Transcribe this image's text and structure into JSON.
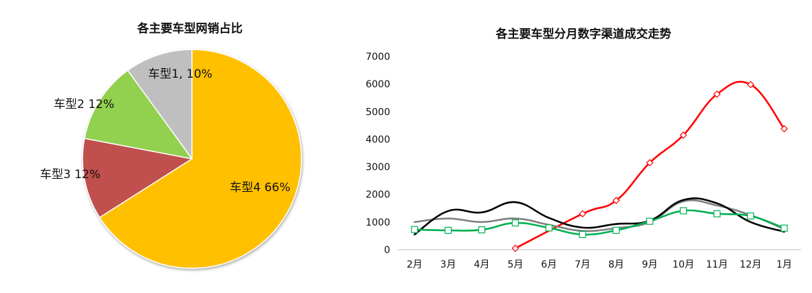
{
  "chart_data": [
    {
      "type": "pie",
      "title": "各主要车型网销占比",
      "slices": [
        {
          "label": "车型1, 10%",
          "value": 10,
          "color": "#bfbfbf"
        },
        {
          "label": "车型2  12%",
          "value": 12,
          "color": "#92d050"
        },
        {
          "label": "车型3 12%",
          "value": 12,
          "color": "#c0504d"
        },
        {
          "label": "车型4 66%",
          "value": 66,
          "color": "#ffc000"
        }
      ]
    },
    {
      "type": "line",
      "title": "各主要车型分月数字渠道成交走势",
      "categories": [
        "2月",
        "3月",
        "4月",
        "5月",
        "6月",
        "7月",
        "8月",
        "9月",
        "10月",
        "11月",
        "12月",
        "1月"
      ],
      "ylim": [
        0,
        7000
      ],
      "yticks": [
        0,
        1000,
        2000,
        3000,
        4000,
        5000,
        6000,
        7000
      ],
      "series": [
        {
          "color": "#ff0000",
          "marker": "diamond",
          "values": [
            null,
            null,
            null,
            50,
            null,
            1300,
            1780,
            3150,
            4150,
            5630,
            5980,
            4380
          ]
        },
        {
          "color": "#7f7f7f",
          "marker": "none",
          "values": [
            1000,
            1130,
            1000,
            1130,
            900,
            680,
            780,
            1000,
            1750,
            1600,
            1250,
            750
          ]
        },
        {
          "color": "#000000",
          "marker": "none",
          "values": [
            550,
            1400,
            1350,
            1720,
            1150,
            800,
            930,
            1050,
            1800,
            1680,
            1000,
            650
          ]
        },
        {
          "color": "#00b050",
          "marker": "square",
          "values": [
            730,
            700,
            720,
            970,
            790,
            550,
            700,
            1030,
            1410,
            1300,
            1220,
            780
          ]
        }
      ]
    }
  ]
}
